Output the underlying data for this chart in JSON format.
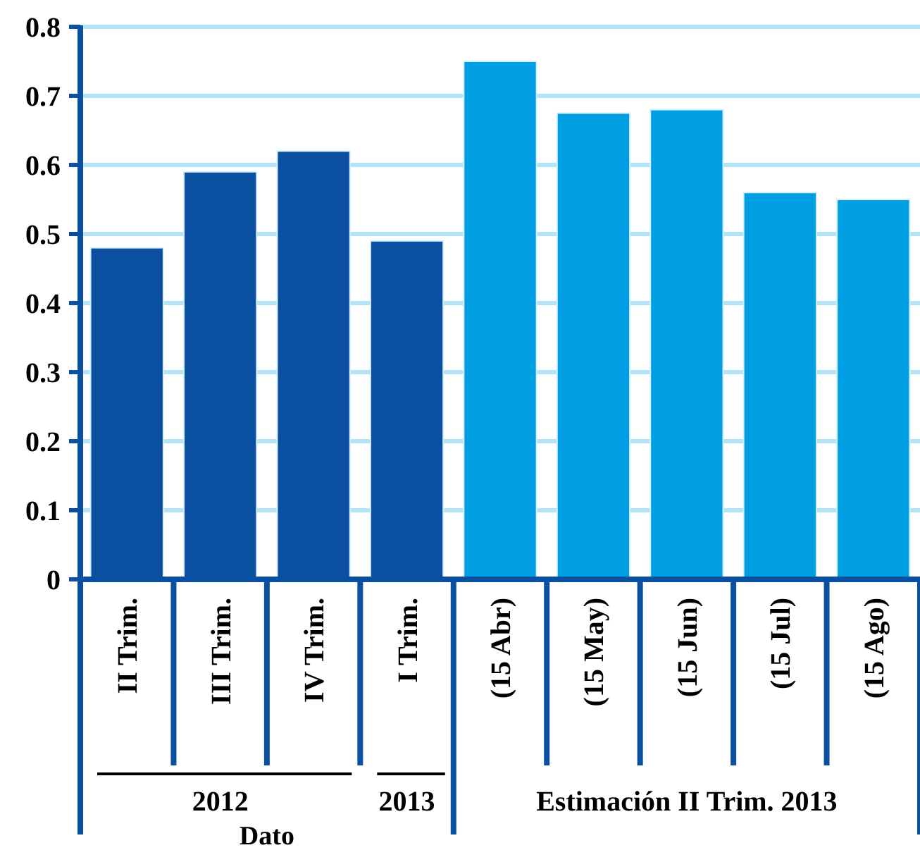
{
  "chart_data": {
    "type": "bar",
    "categories": [
      "II Trim.",
      "III Trim.",
      "IV Trim.",
      "I Trim.",
      "(15 Abr)",
      "(15 May)",
      "(15 Jun)",
      "(15 Jul)",
      "(15 Ago)"
    ],
    "values": [
      0.48,
      0.59,
      0.62,
      0.49,
      0.75,
      0.675,
      0.68,
      0.56,
      0.55
    ],
    "colors": [
      "#0b4fa1",
      "#0b4fa1",
      "#0b4fa1",
      "#0b4fa1",
      "#009ee2",
      "#009ee2",
      "#009ee2",
      "#009ee2",
      "#009ee2"
    ],
    "ylim": [
      0,
      0.8
    ],
    "yticks": [
      0,
      0.1,
      0.2,
      0.3,
      0.4,
      0.5,
      0.6,
      0.7,
      0.8
    ],
    "grid": "y",
    "annotations": [
      "2012",
      "2013",
      "Estimación II Trim. 2013",
      "Dato"
    ]
  }
}
